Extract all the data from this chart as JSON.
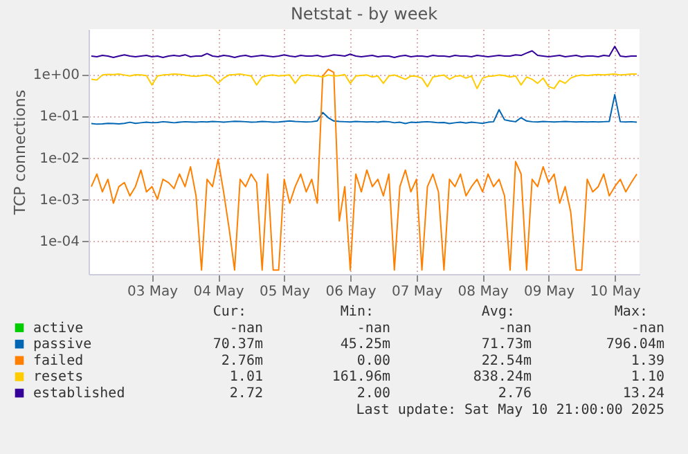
{
  "chart_data": {
    "type": "line",
    "title": "Netstat - by week",
    "ylabel": "TCP connections",
    "log": "y",
    "grid": true,
    "legend": "bottom",
    "xlim": [
      "2025-05-02T13:00",
      "2025-05-10T21:00"
    ],
    "xticks": [
      {
        "value": "2025-05-03T12:00",
        "label": "03 May"
      },
      {
        "value": "2025-05-04T12:00",
        "label": "04 May"
      },
      {
        "value": "2025-05-05T12:00",
        "label": "05 May"
      },
      {
        "value": "2025-05-06T12:00",
        "label": "06 May"
      },
      {
        "value": "2025-05-07T12:00",
        "label": "07 May"
      },
      {
        "value": "2025-05-08T12:00",
        "label": "08 May"
      },
      {
        "value": "2025-05-09T12:00",
        "label": "09 May"
      },
      {
        "value": "2025-05-10T12:00",
        "label": "10 May"
      }
    ],
    "ylim": [
      1.6e-05,
      12
    ],
    "yticks": [
      {
        "value": 0.0001,
        "label": "1e-04"
      },
      {
        "value": 0.001,
        "label": "1e-03"
      },
      {
        "value": 0.01,
        "label": "1e-02"
      },
      {
        "value": 0.1,
        "label": "1e-01"
      },
      {
        "value": 1,
        "label": "1e+00"
      }
    ],
    "x": [
      "2025-05-02T14:00",
      "2025-05-02T16:00",
      "2025-05-02T18:00",
      "2025-05-02T20:00",
      "2025-05-02T22:00",
      "2025-05-03T00:00",
      "2025-05-03T02:00",
      "2025-05-03T04:00",
      "2025-05-03T06:00",
      "2025-05-03T08:00",
      "2025-05-03T10:00",
      "2025-05-03T12:00",
      "2025-05-03T14:00",
      "2025-05-03T16:00",
      "2025-05-03T18:00",
      "2025-05-03T20:00",
      "2025-05-03T22:00",
      "2025-05-04T00:00",
      "2025-05-04T02:00",
      "2025-05-04T04:00",
      "2025-05-04T06:00",
      "2025-05-04T08:00",
      "2025-05-04T10:00",
      "2025-05-04T12:00",
      "2025-05-04T14:00",
      "2025-05-04T16:00",
      "2025-05-04T18:00",
      "2025-05-04T20:00",
      "2025-05-04T22:00",
      "2025-05-05T00:00",
      "2025-05-05T02:00",
      "2025-05-05T04:00",
      "2025-05-05T06:00",
      "2025-05-05T08:00",
      "2025-05-05T10:00",
      "2025-05-05T12:00",
      "2025-05-05T14:00",
      "2025-05-05T16:00",
      "2025-05-05T18:00",
      "2025-05-05T20:00",
      "2025-05-05T22:00",
      "2025-05-06T00:00",
      "2025-05-06T02:00",
      "2025-05-06T04:00",
      "2025-05-06T06:00",
      "2025-05-06T08:00",
      "2025-05-06T10:00",
      "2025-05-06T12:00",
      "2025-05-06T14:00",
      "2025-05-06T16:00",
      "2025-05-06T18:00",
      "2025-05-06T20:00",
      "2025-05-06T22:00",
      "2025-05-07T00:00",
      "2025-05-07T02:00",
      "2025-05-07T04:00",
      "2025-05-07T06:00",
      "2025-05-07T08:00",
      "2025-05-07T10:00",
      "2025-05-07T12:00",
      "2025-05-07T14:00",
      "2025-05-07T16:00",
      "2025-05-07T18:00",
      "2025-05-07T20:00",
      "2025-05-07T22:00",
      "2025-05-08T00:00",
      "2025-05-08T02:00",
      "2025-05-08T04:00",
      "2025-05-08T06:00",
      "2025-05-08T08:00",
      "2025-05-08T10:00",
      "2025-05-08T12:00",
      "2025-05-08T14:00",
      "2025-05-08T16:00",
      "2025-05-08T18:00",
      "2025-05-08T20:00",
      "2025-05-08T22:00",
      "2025-05-09T00:00",
      "2025-05-09T02:00",
      "2025-05-09T04:00",
      "2025-05-09T06:00",
      "2025-05-09T08:00",
      "2025-05-09T10:00",
      "2025-05-09T12:00",
      "2025-05-09T14:00",
      "2025-05-09T16:00",
      "2025-05-09T18:00",
      "2025-05-09T20:00",
      "2025-05-09T22:00",
      "2025-05-10T00:00",
      "2025-05-10T02:00",
      "2025-05-10T04:00",
      "2025-05-10T06:00",
      "2025-05-10T08:00",
      "2025-05-10T10:00",
      "2025-05-10T12:00",
      "2025-05-10T14:00",
      "2025-05-10T16:00",
      "2025-05-10T18:00",
      "2025-05-10T20:00"
    ],
    "series": [
      {
        "name": "active",
        "color": "#00cc00",
        "values": [
          null,
          null,
          null,
          null,
          null,
          null,
          null,
          null,
          null,
          null,
          null,
          null,
          null,
          null,
          null,
          null,
          null,
          null,
          null,
          null,
          null,
          null,
          null,
          null,
          null,
          null,
          null,
          null,
          null,
          null,
          null,
          null,
          null,
          null,
          null,
          null,
          null,
          null,
          null,
          null,
          null,
          null,
          null,
          null,
          null,
          null,
          null,
          null,
          null,
          null,
          null,
          null,
          null,
          null,
          null,
          null,
          null,
          null,
          null,
          null,
          null,
          null,
          null,
          null,
          null,
          null,
          null,
          null,
          null,
          null,
          null,
          null,
          null,
          null,
          null,
          null,
          null,
          null,
          null,
          null,
          null,
          null,
          null,
          null,
          null,
          null,
          null,
          null,
          null,
          null,
          null,
          null,
          null,
          null,
          null,
          null,
          null,
          null,
          null,
          null
        ]
      },
      {
        "name": "passive",
        "color": "#0066b3",
        "values": [
          0.065,
          0.063,
          0.064,
          0.066,
          0.065,
          0.064,
          0.066,
          0.07,
          0.066,
          0.068,
          0.07,
          0.068,
          0.069,
          0.072,
          0.07,
          0.068,
          0.07,
          0.072,
          0.071,
          0.07,
          0.072,
          0.071,
          0.073,
          0.072,
          0.07,
          0.072,
          0.074,
          0.073,
          0.072,
          0.07,
          0.071,
          0.073,
          0.072,
          0.07,
          0.071,
          0.073,
          0.075,
          0.073,
          0.072,
          0.071,
          0.072,
          0.075,
          0.12,
          0.09,
          0.075,
          0.073,
          0.072,
          0.071,
          0.073,
          0.072,
          0.071,
          0.072,
          0.07,
          0.073,
          0.072,
          0.068,
          0.07,
          0.065,
          0.07,
          0.069,
          0.071,
          0.072,
          0.07,
          0.068,
          0.069,
          0.065,
          0.068,
          0.07,
          0.067,
          0.07,
          0.068,
          0.066,
          0.07,
          0.072,
          0.14,
          0.08,
          0.075,
          0.072,
          0.09,
          0.075,
          0.072,
          0.071,
          0.073,
          0.072,
          0.071,
          0.072,
          0.073,
          0.072,
          0.071,
          0.072,
          0.071,
          0.072,
          0.071,
          0.072,
          0.073,
          0.32,
          0.072,
          0.071,
          0.072,
          0.07
        ]
      },
      {
        "name": "failed",
        "color": "#ff8000",
        "values": [
          0.002,
          0.004,
          0.0015,
          0.003,
          0.0008,
          0.002,
          0.0025,
          0.0012,
          0.002,
          0.005,
          0.0015,
          0.002,
          0.001,
          0.003,
          0.0025,
          0.0018,
          0.004,
          0.002,
          0.006,
          0.0012,
          2e-05,
          0.003,
          0.002,
          0.009,
          0.0015,
          0.0002,
          2e-05,
          0.003,
          0.002,
          0.004,
          0.0025,
          2e-05,
          0.004,
          2e-05,
          2e-05,
          0.003,
          0.0008,
          0.002,
          0.004,
          0.0015,
          0.003,
          0.0008,
          0.9,
          1.3,
          1.1,
          0.0003,
          0.002,
          2e-05,
          0.004,
          0.0015,
          0.005,
          0.002,
          0.003,
          0.0012,
          0.004,
          2e-05,
          0.002,
          0.005,
          0.0015,
          0.003,
          2e-05,
          0.002,
          0.004,
          0.0015,
          2e-05,
          0.003,
          0.002,
          0.004,
          0.0012,
          0.002,
          0.003,
          0.0015,
          0.004,
          0.002,
          0.003,
          0.0012,
          2e-05,
          0.008,
          0.004,
          2e-05,
          0.003,
          0.002,
          0.006,
          0.0025,
          0.004,
          0.0008,
          0.002,
          0.0005,
          2e-05,
          2e-05,
          0.003,
          0.0015,
          0.002,
          0.004,
          0.0012,
          0.002,
          0.003,
          0.0015,
          0.0025,
          0.004
        ]
      },
      {
        "name": "resets",
        "color": "#ffcc00",
        "values": [
          0.75,
          0.72,
          0.95,
          0.98,
          0.97,
          1.0,
          0.95,
          0.9,
          0.96,
          0.95,
          0.92,
          0.55,
          0.9,
          0.95,
          0.97,
          1.0,
          0.98,
          0.95,
          0.9,
          0.88,
          0.92,
          0.95,
          0.85,
          0.6,
          0.8,
          0.95,
          0.97,
          1.0,
          0.95,
          0.9,
          0.55,
          0.85,
          0.92,
          0.95,
          0.9,
          0.93,
          0.95,
          0.6,
          0.9,
          0.95,
          0.92,
          0.9,
          0.85,
          0.95,
          0.9,
          0.92,
          0.97,
          0.6,
          0.9,
          0.93,
          0.95,
          0.85,
          0.9,
          0.6,
          0.9,
          0.95,
          0.85,
          0.75,
          0.9,
          0.88,
          0.8,
          0.5,
          0.85,
          0.9,
          0.95,
          0.75,
          0.88,
          0.92,
          0.8,
          0.9,
          0.45,
          0.8,
          0.88,
          0.9,
          0.95,
          0.92,
          0.85,
          0.9,
          0.55,
          0.85,
          0.75,
          0.6,
          0.8,
          0.5,
          0.45,
          0.7,
          0.6,
          0.8,
          0.9,
          0.95,
          0.92,
          0.95,
          0.97,
          0.95,
          0.98,
          1.0,
          0.95,
          0.97,
          1.0,
          1.0
        ]
      },
      {
        "name": "established",
        "color": "#330099",
        "values": [
          2.7,
          2.6,
          2.8,
          2.7,
          2.5,
          2.7,
          2.9,
          2.7,
          2.6,
          2.7,
          2.8,
          2.6,
          2.7,
          2.5,
          2.7,
          2.8,
          2.7,
          2.9,
          2.6,
          2.7,
          2.7,
          3.1,
          2.7,
          2.6,
          2.8,
          2.7,
          2.5,
          2.7,
          2.8,
          2.6,
          2.7,
          2.8,
          2.7,
          2.6,
          2.7,
          2.9,
          2.7,
          2.6,
          2.8,
          2.7,
          2.7,
          2.8,
          2.6,
          2.7,
          2.9,
          2.8,
          2.7,
          3.0,
          2.7,
          2.6,
          2.7,
          2.8,
          2.6,
          2.7,
          2.7,
          2.5,
          2.7,
          2.8,
          2.6,
          2.7,
          2.7,
          2.6,
          2.8,
          2.7,
          2.7,
          2.6,
          2.8,
          2.7,
          2.7,
          2.6,
          2.8,
          2.7,
          2.6,
          2.7,
          2.8,
          2.7,
          2.7,
          2.9,
          2.8,
          3.2,
          3.6,
          2.8,
          2.7,
          2.6,
          2.7,
          2.8,
          2.6,
          2.7,
          2.8,
          2.6,
          2.7,
          2.7,
          2.6,
          2.8,
          2.7,
          4.6,
          2.7,
          2.6,
          2.7,
          2.7
        ]
      }
    ],
    "annotations": [
      "Cur:",
      "Min:",
      "Avg:",
      "Max:",
      "-nan",
      "-nan",
      "-nan",
      "-nan",
      "70.37m",
      "45.25m",
      "71.73m",
      "796.04m",
      "2.76m",
      "0.00",
      "22.54m",
      "1.39",
      "1.01",
      "161.96m",
      "838.24m",
      "1.10",
      "2.72",
      "2.00",
      "2.76",
      "13.24",
      "Last update: Sat May 10 21:00:00 2025"
    ]
  }
}
